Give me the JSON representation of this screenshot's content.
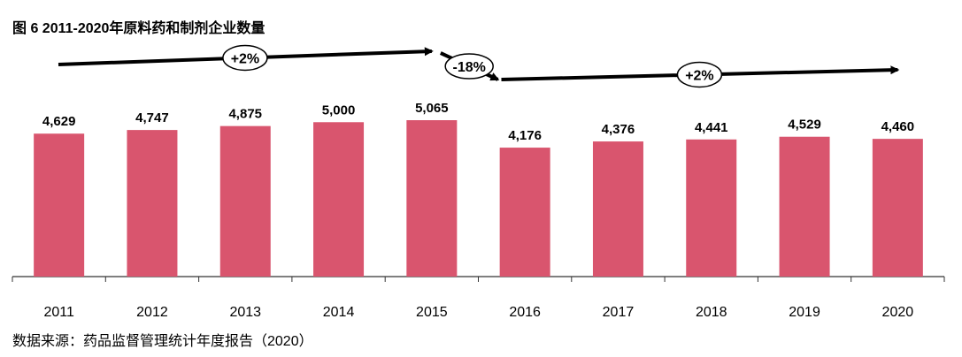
{
  "title": "图 6 2011-2020年原料药和制剂企业数量",
  "source": "数据来源：药品监督管理统计年度报告（2020）",
  "colors": {
    "bar": "#d9556e",
    "axis": "#333333",
    "text": "#000000"
  },
  "chart_data": {
    "type": "bar",
    "categories": [
      "2011",
      "2012",
      "2013",
      "2014",
      "2015",
      "2016",
      "2017",
      "2018",
      "2019",
      "2020"
    ],
    "values": [
      4629,
      4747,
      4875,
      5000,
      5065,
      4176,
      4376,
      4441,
      4529,
      4460
    ],
    "value_labels": [
      "4,629",
      "4,747",
      "4,875",
      "5,000",
      "5,065",
      "4,176",
      "4,376",
      "4,441",
      "4,529",
      "4,460"
    ],
    "ylim": [
      0,
      5065
    ],
    "grid": false,
    "annotations": [
      {
        "label": "+2%",
        "from": "2011",
        "to": "2015"
      },
      {
        "label": "-18%",
        "from": "2015",
        "to": "2016"
      },
      {
        "label": "+2%",
        "from": "2016",
        "to": "2020"
      }
    ]
  }
}
